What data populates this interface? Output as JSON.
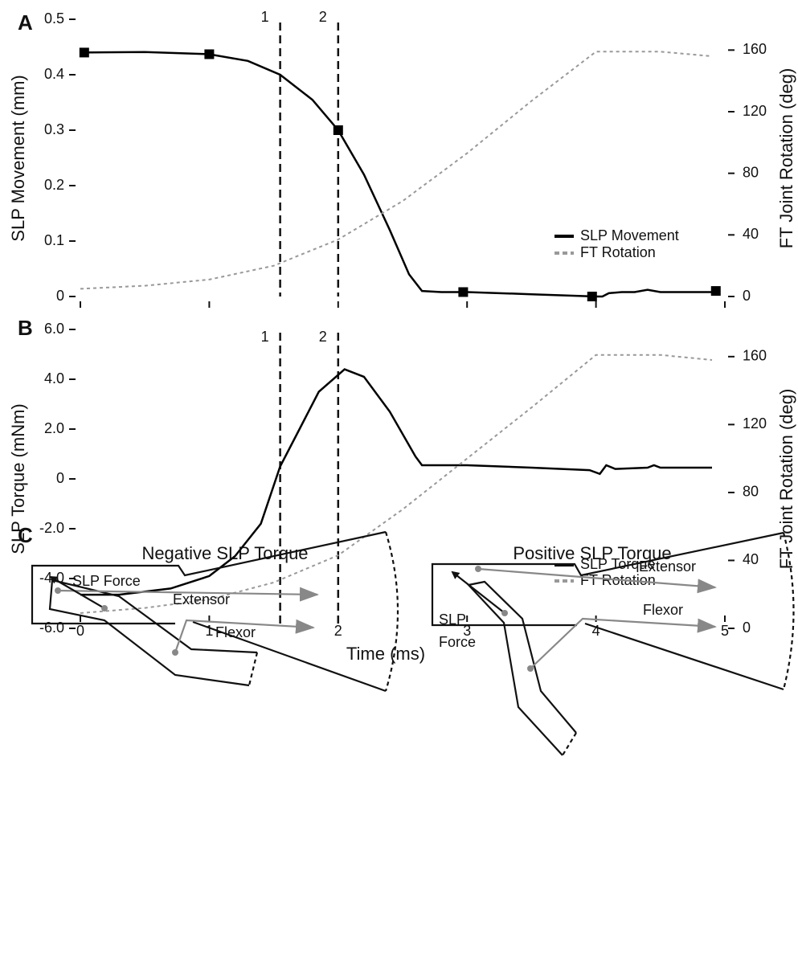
{
  "chart_data": [
    {
      "type": "line",
      "panel": "A",
      "ylabel": "SLP Movement (mm)",
      "y2label": "FT Joint Rotation (deg)",
      "xlim": [
        0,
        5
      ],
      "xticks": [
        0,
        1,
        2,
        3,
        4,
        5
      ],
      "show_xtick_labels": false,
      "ylim": [
        0,
        0.5
      ],
      "yticks": [
        0,
        0.1,
        0.2,
        0.3,
        0.4,
        0.5
      ],
      "y2lim": [
        0,
        180
      ],
      "y2ticks": [
        0,
        40,
        80,
        120,
        160
      ],
      "legend": "lower right",
      "vlines": [
        {
          "x": 1.55,
          "label": "1"
        },
        {
          "x": 2,
          "label": "2"
        }
      ],
      "series": [
        {
          "name": "SLP Movement",
          "color": "#000000",
          "dashed": false,
          "x": [
            0,
            0.5,
            1,
            1.3,
            1.55,
            1.8,
            2,
            2.2,
            2.4,
            2.55,
            2.65,
            2.8,
            3,
            3.5,
            4,
            4.05,
            4.1,
            4.2,
            4.3,
            4.4,
            4.5,
            4.9
          ],
          "values": [
            0.44,
            0.441,
            0.437,
            0.425,
            0.4,
            0.355,
            0.3,
            0.22,
            0.12,
            0.04,
            0.01,
            0.008,
            0.008,
            0.004,
            0.0,
            0.0,
            0.006,
            0.008,
            0.008,
            0.012,
            0.008,
            0.008
          ],
          "marker_x": [
            0.03,
            1,
            2,
            2.97,
            3.97,
            4.93
          ],
          "marker_values": [
            0.44,
            0.437,
            0.3,
            0.008,
            0.0,
            0.01
          ]
        },
        {
          "name": "FT Rotation",
          "color": "#999999",
          "dashed": true,
          "axis": "y2",
          "x": [
            0,
            0.5,
            1,
            1.5,
            2,
            2.5,
            3,
            3.5,
            4,
            4.5,
            4.9
          ],
          "values": [
            5,
            7,
            11,
            20,
            37,
            62,
            93,
            127,
            159,
            159,
            156
          ]
        }
      ]
    },
    {
      "type": "line",
      "panel": "B",
      "ylabel": "SLP Torque (mNm)",
      "y2label": "FT Joint Rotation (deg)",
      "xlabel": "Time (ms)",
      "xlim": [
        0,
        5
      ],
      "xticks": [
        0,
        1,
        2,
        3,
        4,
        5
      ],
      "show_xtick_labels": true,
      "ylim": [
        -6,
        6
      ],
      "yticks": [
        {
          "value": -6,
          "label": "-6.0"
        },
        {
          "value": -4,
          "label": "-4.0"
        },
        {
          "value": -2,
          "label": "-2.0"
        },
        0,
        {
          "value": 2,
          "label": "2.0"
        },
        {
          "value": 4,
          "label": "4.0"
        },
        {
          "value": 6,
          "label": "6.0"
        }
      ],
      "y2lim": [
        0,
        176
      ],
      "y2ticks": [
        0,
        40,
        80,
        120,
        160
      ],
      "legend": "lower right",
      "vlines": [
        {
          "x": 1.55,
          "label": "1"
        },
        {
          "x": 2,
          "label": "2"
        }
      ],
      "series": [
        {
          "name": "SLP Torque",
          "color": "#000000",
          "dashed": false,
          "x": [
            0,
            0.3,
            0.7,
            1,
            1.2,
            1.4,
            1.55,
            1.7,
            1.85,
            2.05,
            2.2,
            2.4,
            2.6,
            2.65,
            3,
            3.5,
            3.95,
            4.03,
            4.08,
            4.15,
            4.4,
            4.45,
            4.5,
            4.9
          ],
          "values": [
            -4.65,
            -4.65,
            -4.4,
            -3.9,
            -3.1,
            -1.8,
            0.5,
            2.0,
            3.5,
            4.4,
            4.1,
            2.7,
            0.9,
            0.55,
            0.55,
            0.45,
            0.35,
            0.2,
            0.55,
            0.4,
            0.45,
            0.55,
            0.45,
            0.45
          ]
        },
        {
          "name": "FT Rotation",
          "color": "#999999",
          "dashed": true,
          "axis": "y2",
          "x": [
            0,
            0.5,
            1,
            1.5,
            2,
            2.5,
            3,
            3.5,
            4,
            4.5,
            4.9
          ],
          "values": [
            9,
            12,
            17,
            27,
            43,
            70,
            100,
            130,
            161,
            161,
            158
          ]
        }
      ]
    }
  ],
  "panel_c": {
    "label": "C",
    "negative": {
      "title": "Negative SLP Torque",
      "force": "SLP Force",
      "extensor": "Extensor",
      "flexor": "Flexor"
    },
    "positive": {
      "title": "Positive SLP Torque",
      "force": [
        "SLP",
        "Force"
      ],
      "extensor": "Extensor",
      "flexor": "Flexor"
    }
  }
}
